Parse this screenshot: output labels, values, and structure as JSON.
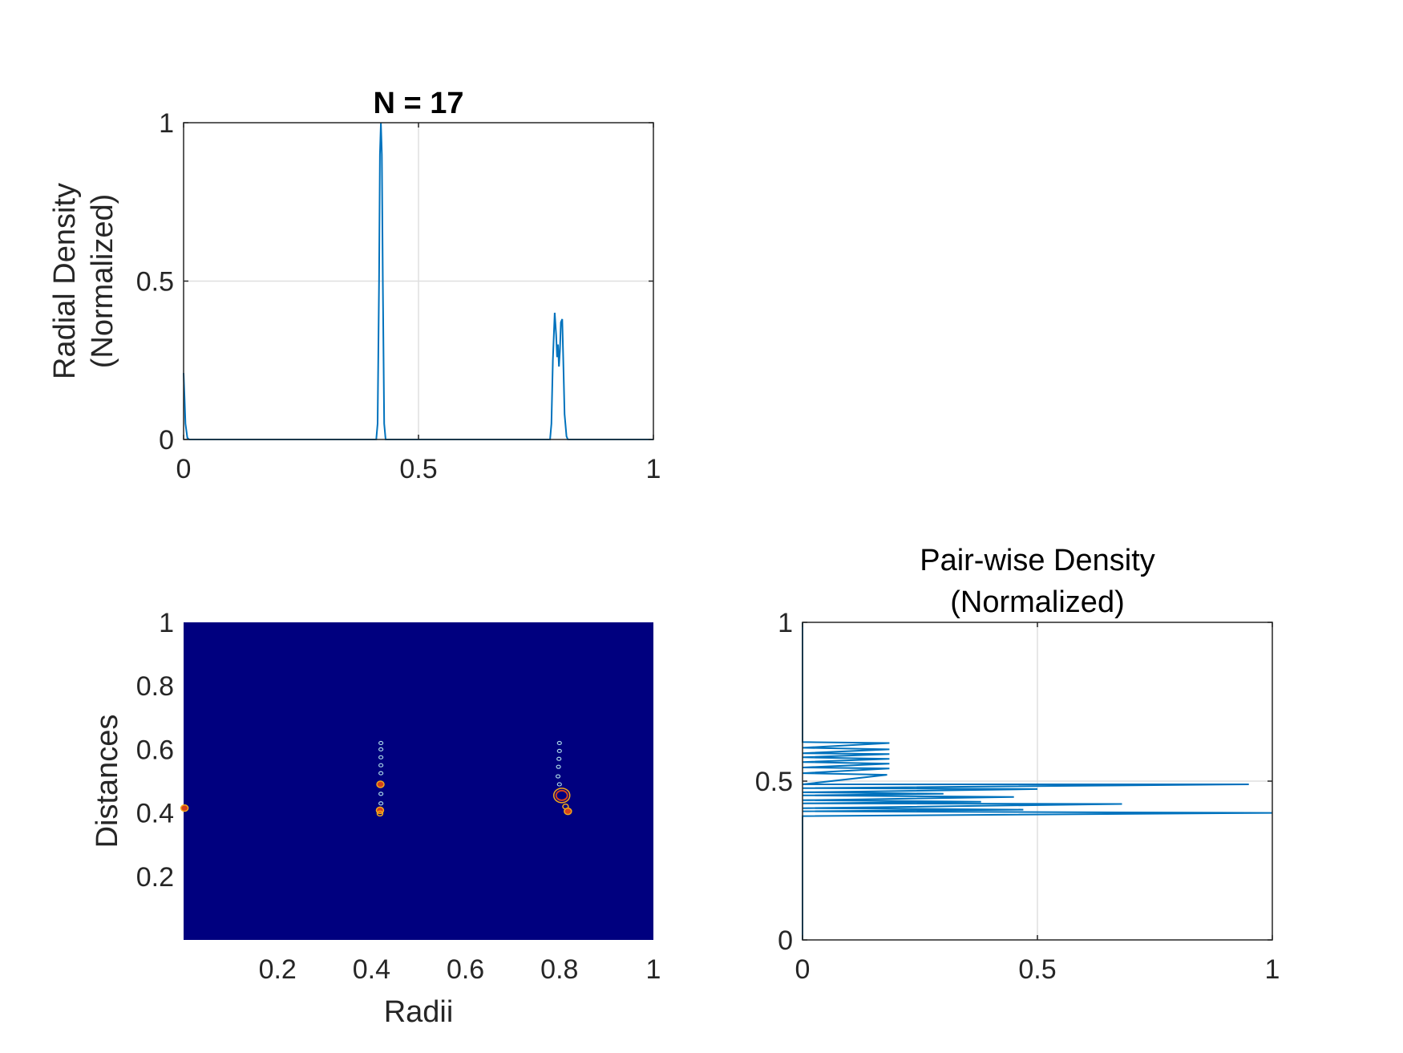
{
  "colors": {
    "line": "#0072BD",
    "axis": "#262626",
    "grid": "#DFDFDF",
    "heatmap_bg": "#00007F",
    "contour_hot": "#D4411B",
    "contour_warm": "#F2A81A",
    "contour_cool": "#A9D6E5"
  },
  "chart_data": [
    {
      "id": "radial",
      "type": "line",
      "title": "N = 17",
      "xlabel": "",
      "ylabel": [
        "Radial Density",
        "(Normalized)"
      ],
      "xlim": [
        0,
        1
      ],
      "ylim": [
        0,
        1
      ],
      "xticks": [
        0,
        0.5,
        1
      ],
      "xtick_labels": [
        "0",
        "0.5",
        "1"
      ],
      "yticks": [
        0,
        0.5,
        1
      ],
      "ytick_labels": [
        "0",
        "0.5",
        "1"
      ],
      "grid": true,
      "series": [
        {
          "x": [
            0,
            0.002,
            0.004,
            0.008,
            0.012,
            0.02,
            0.41,
            0.413,
            0.416,
            0.418,
            0.42,
            0.422,
            0.424,
            0.427,
            0.43,
            0.78,
            0.783,
            0.786,
            0.79,
            0.793,
            0.795,
            0.797,
            0.799,
            0.801,
            0.803,
            0.806,
            0.808,
            0.811,
            0.815,
            0.818,
            1
          ],
          "y": [
            0.21,
            0.13,
            0.05,
            0.005,
            0,
            0,
            0,
            0.05,
            0.5,
            0.9,
            1.0,
            0.9,
            0.5,
            0.05,
            0,
            0,
            0.05,
            0.25,
            0.4,
            0.33,
            0.26,
            0.3,
            0.23,
            0.28,
            0.37,
            0.38,
            0.26,
            0.08,
            0.01,
            0,
            0
          ]
        }
      ]
    },
    {
      "id": "contour",
      "type": "heatmap",
      "title": "",
      "xlabel": "Radii",
      "ylabel": "Distances",
      "xlim": [
        0,
        1
      ],
      "ylim": [
        0,
        1
      ],
      "xticks": [
        0.2,
        0.4,
        0.6,
        0.8,
        1
      ],
      "xtick_labels": [
        "0.2",
        "0.4",
        "0.6",
        "0.8",
        "1"
      ],
      "yticks": [
        0.2,
        0.4,
        0.6,
        0.8,
        1
      ],
      "ytick_labels": [
        "0.2",
        "0.4",
        "0.6",
        "0.8",
        "1"
      ],
      "grid": false,
      "blobs": [
        {
          "x": 0.42,
          "y": 0.62,
          "level": "cool"
        },
        {
          "x": 0.42,
          "y": 0.6,
          "level": "cool"
        },
        {
          "x": 0.42,
          "y": 0.575,
          "level": "cool"
        },
        {
          "x": 0.42,
          "y": 0.55,
          "level": "cool"
        },
        {
          "x": 0.42,
          "y": 0.525,
          "level": "cool"
        },
        {
          "x": 0.419,
          "y": 0.49,
          "level": "hot"
        },
        {
          "x": 0.42,
          "y": 0.46,
          "level": "cool"
        },
        {
          "x": 0.42,
          "y": 0.43,
          "level": "cool"
        },
        {
          "x": 0.418,
          "y": 0.408,
          "level": "hot"
        },
        {
          "x": 0.418,
          "y": 0.398,
          "level": "warm"
        },
        {
          "x": 0.8,
          "y": 0.62,
          "level": "cool"
        },
        {
          "x": 0.8,
          "y": 0.595,
          "level": "cool"
        },
        {
          "x": 0.799,
          "y": 0.57,
          "level": "cool"
        },
        {
          "x": 0.798,
          "y": 0.545,
          "level": "cool"
        },
        {
          "x": 0.797,
          "y": 0.515,
          "level": "cool"
        },
        {
          "x": 0.8,
          "y": 0.49,
          "level": "cool"
        },
        {
          "x": 0.805,
          "y": 0.455,
          "level": "ring"
        },
        {
          "x": 0.813,
          "y": 0.42,
          "level": "warm"
        },
        {
          "x": 0.818,
          "y": 0.405,
          "level": "hot"
        },
        {
          "x": 0.002,
          "y": 0.415,
          "level": "hot"
        }
      ]
    },
    {
      "id": "pairwise",
      "type": "line",
      "title": [
        "Pair-wise Density",
        "(Normalized)"
      ],
      "xlabel": "",
      "ylabel": "",
      "xlim": [
        0,
        1
      ],
      "ylim": [
        0,
        1
      ],
      "xticks": [
        0,
        0.5,
        1
      ],
      "xtick_labels": [
        "0",
        "0.5",
        "1"
      ],
      "yticks": [
        0,
        0.5,
        1
      ],
      "ytick_labels": [
        "0",
        "0.5",
        "1"
      ],
      "grid": true,
      "series": [
        {
          "density": [
            0,
            0,
            0.185,
            0,
            0.185,
            0,
            0.185,
            0,
            0.185,
            0,
            0.185,
            0,
            0.185,
            0,
            0.18,
            0,
            0.95,
            0,
            0.5,
            0,
            0.3,
            0,
            0.45,
            0,
            0.38,
            0,
            0.68,
            0,
            0.47,
            0,
            1.0,
            0,
            0
          ],
          "distance": [
            1,
            0.623,
            0.62,
            0.605,
            0.6,
            0.588,
            0.585,
            0.575,
            0.57,
            0.56,
            0.555,
            0.543,
            0.54,
            0.525,
            0.52,
            0.49,
            0.49,
            0.478,
            0.475,
            0.465,
            0.46,
            0.455,
            0.45,
            0.44,
            0.435,
            0.43,
            0.428,
            0.415,
            0.41,
            0.405,
            0.4,
            0.39,
            0
          ]
        }
      ]
    }
  ]
}
